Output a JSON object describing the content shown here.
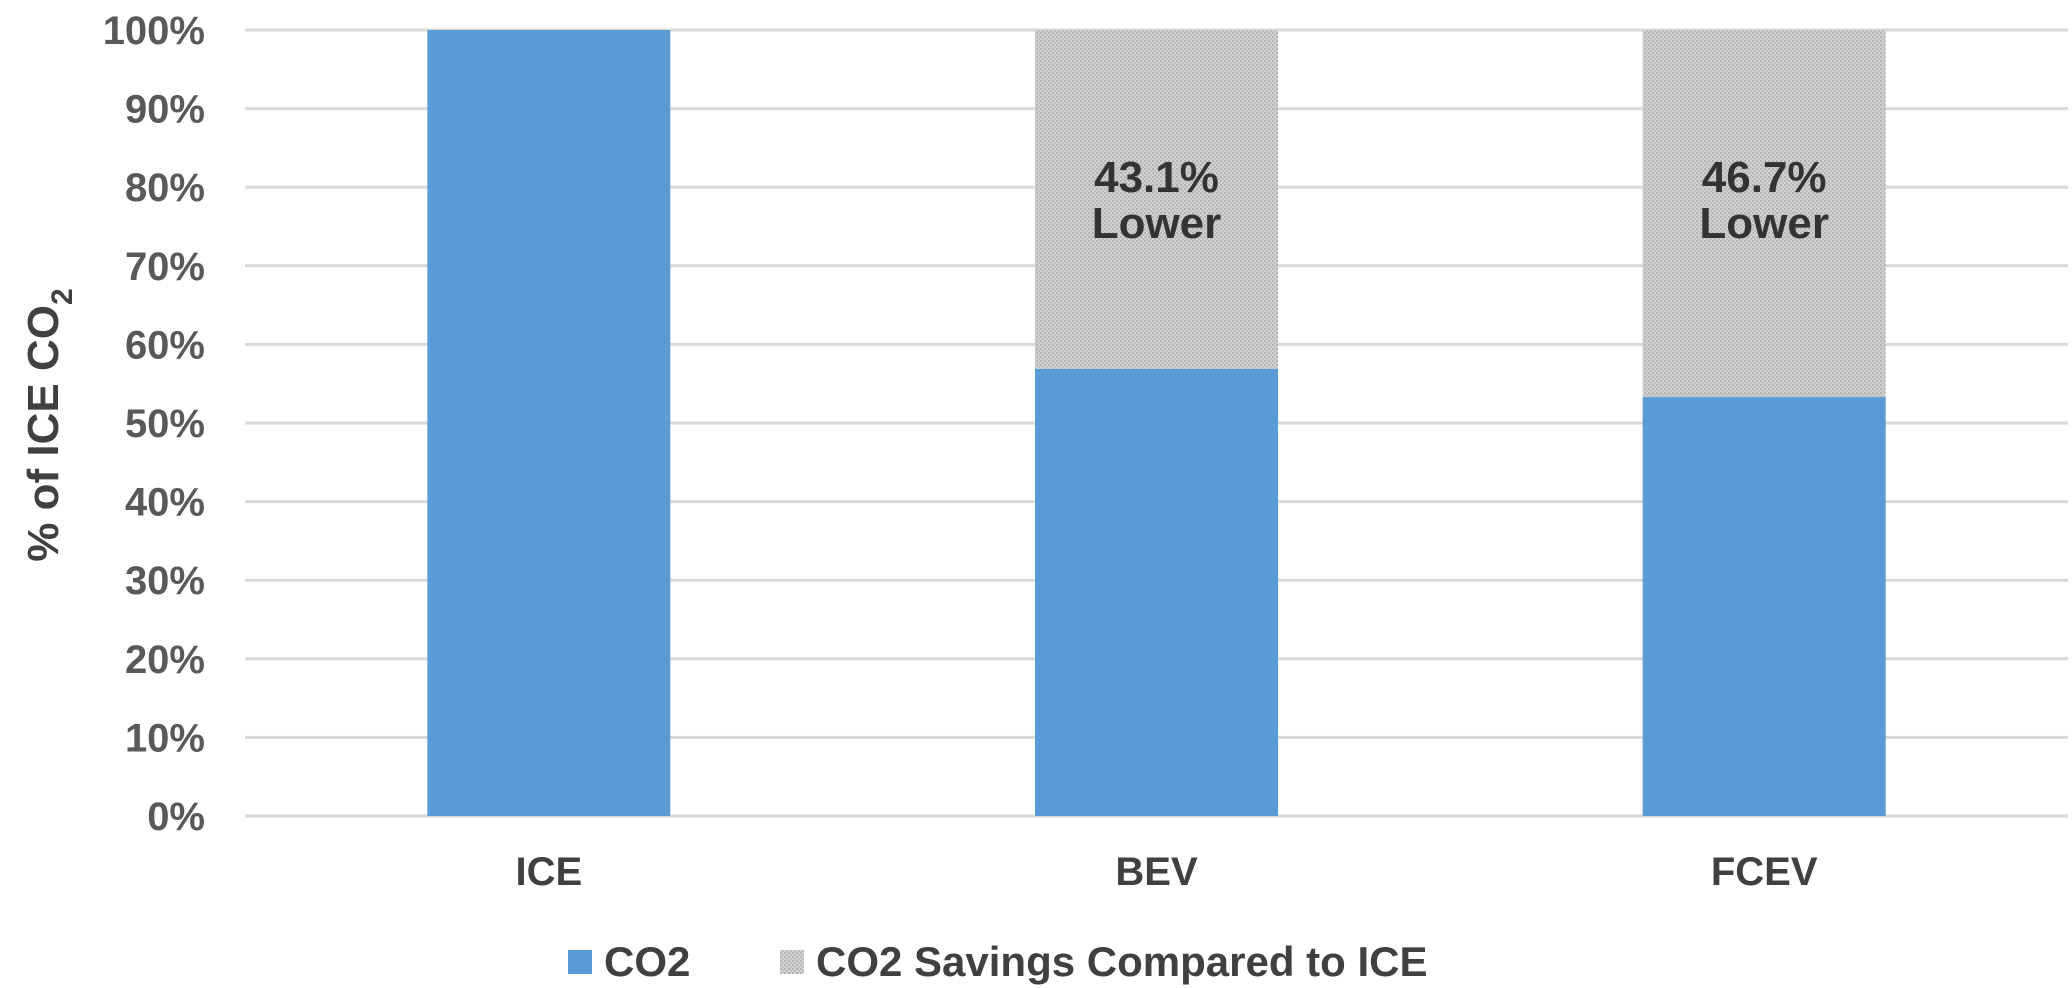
{
  "chart_data": {
    "type": "bar",
    "stacked": true,
    "categories": [
      "ICE",
      "BEV",
      "FCEV"
    ],
    "series": [
      {
        "name": "CO2",
        "values": [
          100,
          56.9,
          53.3
        ],
        "color": "#5B9BD5"
      },
      {
        "name": "CO2 Savings Compared to ICE",
        "values": [
          0,
          43.1,
          46.7
        ],
        "color": "#C8C8C8",
        "pattern": "dotted"
      }
    ],
    "annotations": [
      {
        "category": "BEV",
        "line1": "43.1%",
        "line2": "Lower"
      },
      {
        "category": "FCEV",
        "line1": "46.7%",
        "line2": "Lower"
      }
    ],
    "ylabel": {
      "main": "% of ICE CO",
      "sub": "2"
    },
    "ylim": [
      0,
      100
    ],
    "y_ticks": [
      "0%",
      "10%",
      "20%",
      "30%",
      "40%",
      "50%",
      "60%",
      "70%",
      "80%",
      "90%",
      "100%"
    ],
    "grid": true,
    "legend_position": "bottom"
  }
}
